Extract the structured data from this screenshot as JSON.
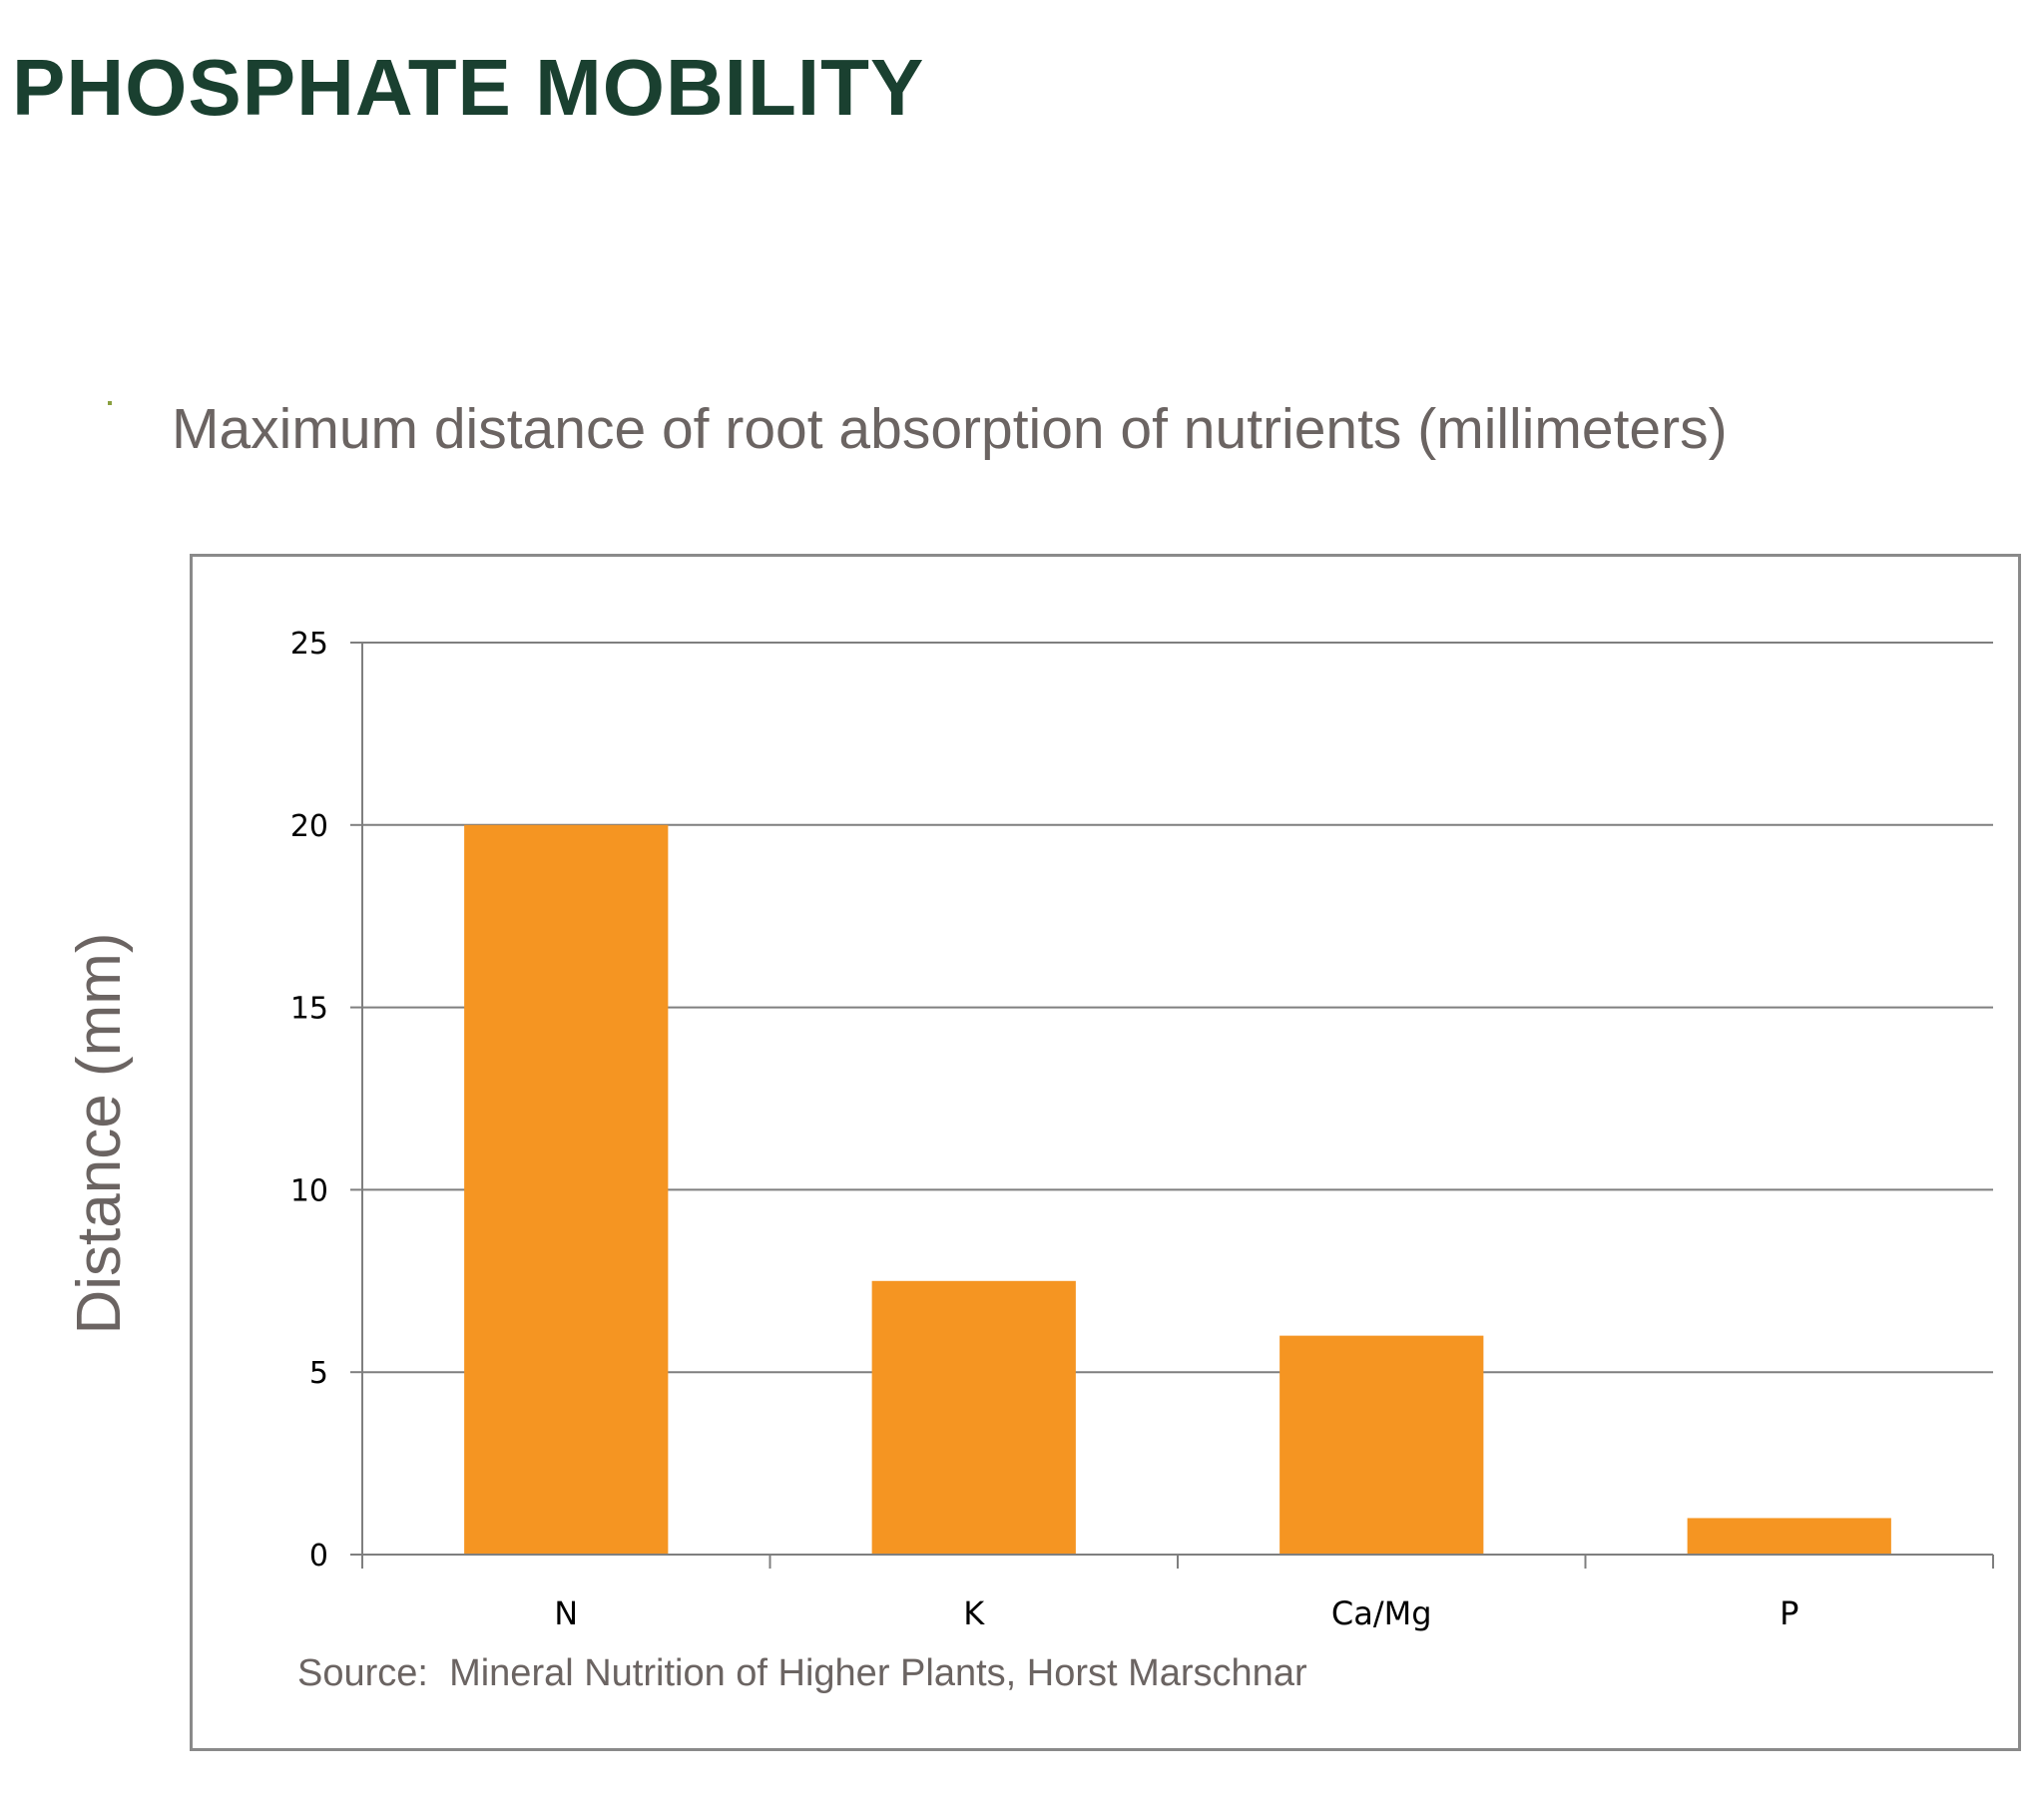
{
  "slide": {
    "title": "PHOSPHATE MOBILITY",
    "subtitle": "Maximum distance of root absorption of nutrients (millimeters)",
    "source": "Source:  Mineral Nutrition of Higher Plants, Horst Marschnar"
  },
  "chart_data": {
    "type": "bar",
    "title": "",
    "xlabel": "",
    "ylabel": "Distance (mm)",
    "categories": [
      "N",
      "K",
      "Ca/Mg",
      "P"
    ],
    "values": [
      20,
      7.5,
      6,
      1
    ],
    "ylim": [
      0,
      25
    ],
    "yticks": [
      "0",
      "5",
      "10",
      "15",
      "20",
      "25"
    ],
    "grid": true,
    "legend": "none"
  },
  "colors": {
    "bar": "#f59522",
    "title": "#1a4030",
    "text": "#6b6462",
    "axis": "#7f7f7f"
  }
}
